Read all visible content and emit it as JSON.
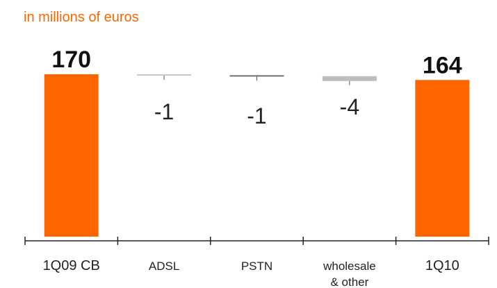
{
  "subtitle": "in millions of euros",
  "colors": {
    "total": "#ff6600",
    "adsl": "#c8c8c8",
    "pstn": "#707070",
    "wholesale": "#bdbdbd",
    "axis": "#222222",
    "subtitle": "#ff6600"
  },
  "chart_data": {
    "type": "bar",
    "subtype": "waterfall",
    "title": "",
    "xlabel": "",
    "ylabel": "",
    "grid": false,
    "legend": "none",
    "ylim": [
      0,
      170
    ],
    "categories": [
      "1Q09 CB",
      "ADSL",
      "PSTN",
      "wholesale\n& other",
      "1Q10"
    ],
    "category_lines": [
      [
        "1Q09 CB"
      ],
      [
        "ADSL"
      ],
      [
        "PSTN"
      ],
      [
        "wholesale",
        "& other"
      ],
      [
        "1Q10"
      ]
    ],
    "values": [
      170,
      -1,
      -1,
      -4,
      164
    ],
    "kinds": [
      "total",
      "delta",
      "delta",
      "delta",
      "total"
    ],
    "value_labels": [
      "170",
      "-1",
      "-1",
      "-4",
      "164"
    ]
  }
}
